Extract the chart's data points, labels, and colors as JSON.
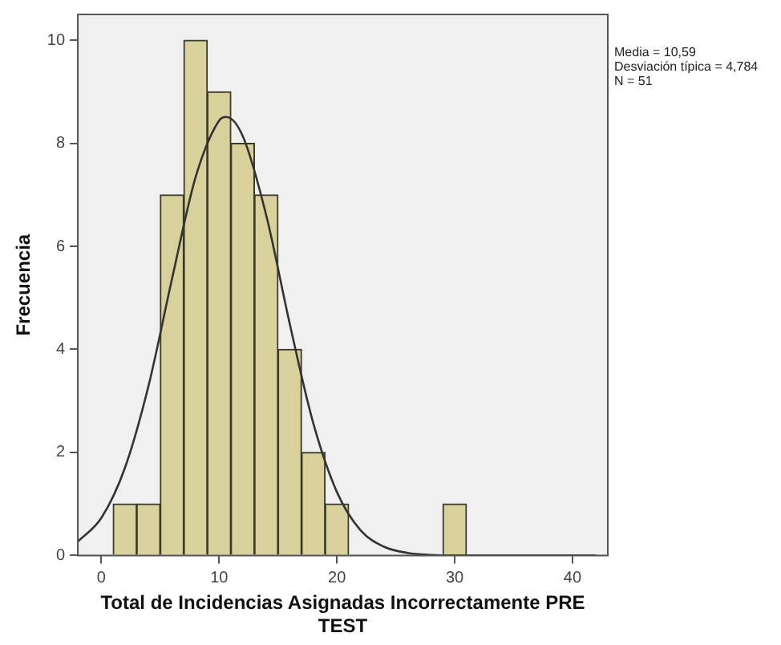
{
  "chart_data": {
    "type": "histogram",
    "xlabel": "Total de Incidencias Asignadas Incorrectamente PRE TEST",
    "ylabel": "Frecuencia",
    "xlim": [
      -2,
      43
    ],
    "xticks": [
      0,
      10,
      20,
      30,
      40
    ],
    "ylim": [
      0,
      10.5
    ],
    "yticks": [
      0,
      2,
      4,
      6,
      8,
      10
    ],
    "grid": false,
    "legend": false,
    "marker": "none",
    "series": [
      {
        "color": "#d8d19b",
        "bins": [
          1,
          3,
          5,
          7,
          9,
          11,
          13,
          15,
          17,
          19,
          21,
          23,
          25,
          27,
          29,
          31
        ],
        "values": [
          1,
          1,
          7,
          10,
          9,
          8,
          7,
          4,
          2,
          1,
          0,
          0,
          0,
          0,
          1
        ]
      },
      {
        "type": "line",
        "color": "#333333",
        "x": [
          -2,
          0,
          2,
          4,
          6,
          8,
          10,
          10.59,
          12,
          14,
          16,
          18,
          20,
          22,
          24,
          26,
          28,
          30,
          32,
          34,
          36,
          38,
          40,
          42
        ],
        "values": [
          0.27,
          0.73,
          1.7,
          3.29,
          5.37,
          7.34,
          8.44,
          8.51,
          8.14,
          6.6,
          4.49,
          2.56,
          1.23,
          0.49,
          0.17,
          0.05,
          0.01,
          0,
          0,
          0,
          0,
          0,
          0,
          0
        ]
      }
    ],
    "annotations": [
      "Media = 10,59",
      "Desviación típica = 4,784",
      "N = 51"
    ]
  }
}
